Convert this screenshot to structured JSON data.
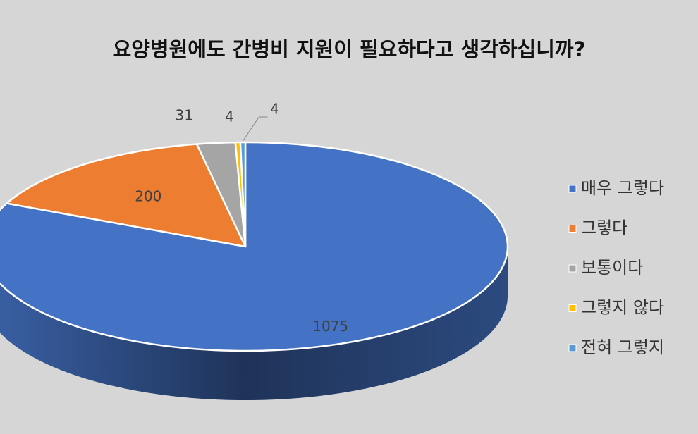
{
  "chart_data": {
    "type": "pie",
    "title": "요양병원에도 간병비 지원이 필요하다고 생각하십니까?",
    "categories": [
      "매우 그렇다",
      "그렇다",
      "보통이다",
      "그렇지 않다",
      "전혀 그렇지"
    ],
    "values": [
      1075,
      200,
      31,
      4,
      4
    ],
    "colors": [
      "#4472c4",
      "#ed7d31",
      "#a5a5a5",
      "#ffc000",
      "#5b9bd5"
    ],
    "legend": "right"
  }
}
